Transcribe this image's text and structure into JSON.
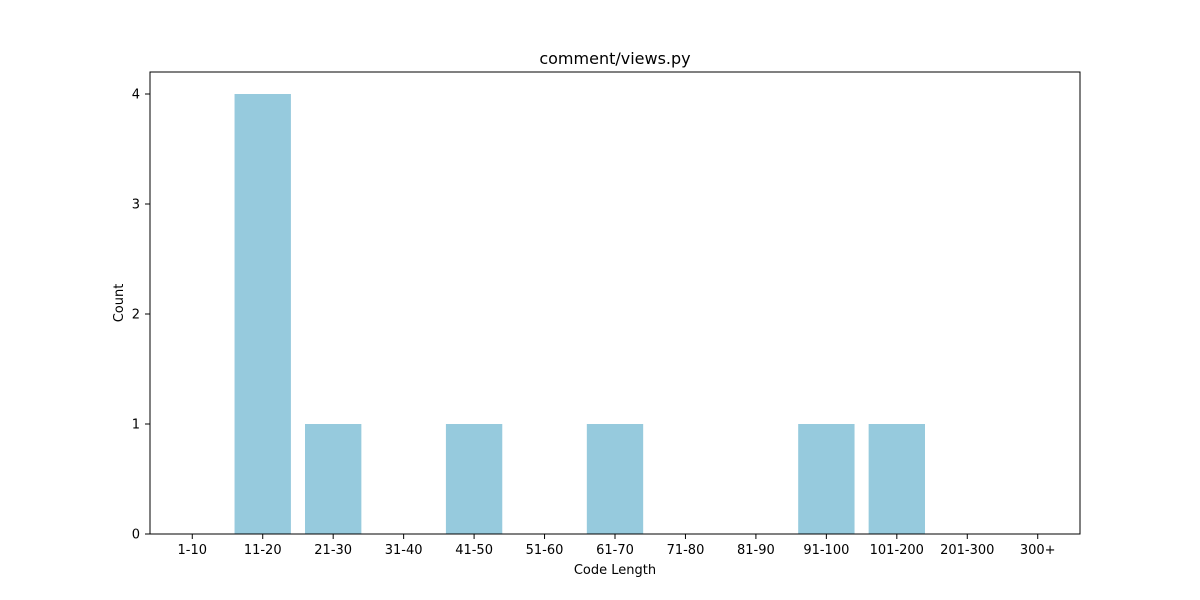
{
  "chart_data": {
    "type": "bar",
    "title": "comment/views.py",
    "xlabel": "Code Length",
    "ylabel": "Count",
    "categories": [
      "1-10",
      "11-20",
      "21-30",
      "31-40",
      "41-50",
      "51-60",
      "61-70",
      "71-80",
      "81-90",
      "91-100",
      "101-200",
      "201-300",
      "300+"
    ],
    "values": [
      0,
      4,
      1,
      0,
      1,
      0,
      1,
      0,
      0,
      1,
      1,
      0,
      0
    ],
    "ylim": [
      0,
      4.2
    ],
    "yticks": [
      0,
      1,
      2,
      3,
      4
    ],
    "grid": false,
    "bar_color": "#96cadd"
  }
}
